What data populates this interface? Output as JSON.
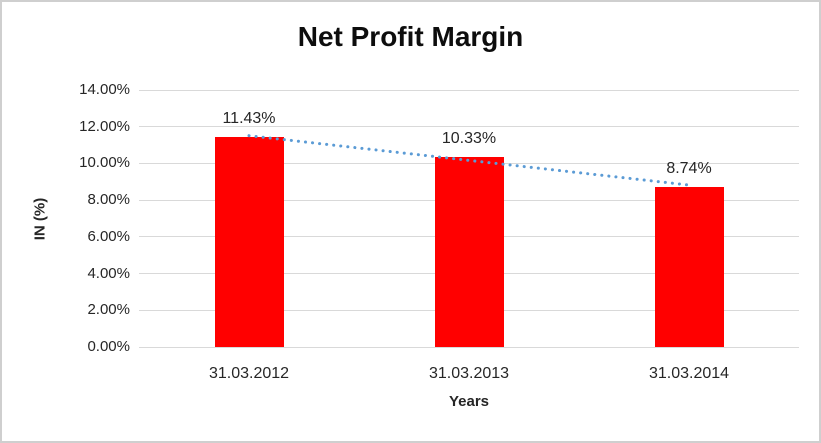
{
  "chart_data": {
    "type": "bar",
    "title": "Net Profit Margin",
    "xlabel": "Years",
    "ylabel": "IN (%)",
    "categories": [
      "31.03.2012",
      "31.03.2013",
      "31.03.2014"
    ],
    "values": [
      11.43,
      10.33,
      8.74
    ],
    "data_labels": [
      "11.43%",
      "10.33%",
      "8.74%"
    ],
    "ylim": [
      0,
      14
    ],
    "y_ticks": [
      {
        "value": 0,
        "label": "0.00%"
      },
      {
        "value": 2,
        "label": "2.00%"
      },
      {
        "value": 4,
        "label": "4.00%"
      },
      {
        "value": 6,
        "label": "6.00%"
      },
      {
        "value": 8,
        "label": "8.00%"
      },
      {
        "value": 10,
        "label": "10.00%"
      },
      {
        "value": 12,
        "label": "12.00%"
      },
      {
        "value": 14,
        "label": "14.00%"
      }
    ],
    "grid": true,
    "legend": "none",
    "trendline": {
      "type": "linear",
      "style": "dotted"
    },
    "colors": {
      "bar": "#FF0000",
      "trendline": "#5B9BD5",
      "gridline": "#D9D9D9",
      "text": "#262626",
      "title_text": "#0D0D0D",
      "frame_border": "#CFCFCF",
      "background": "#FFFFFF"
    }
  }
}
